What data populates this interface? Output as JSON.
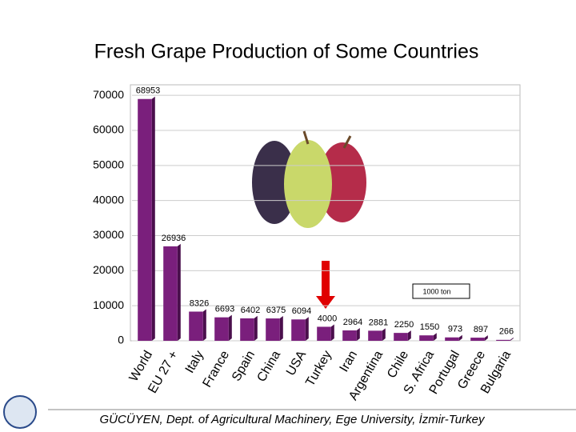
{
  "chart_data": {
    "type": "bar",
    "title": "Fresh Grape Production of Some Countries",
    "categories": [
      "World",
      "EU 27 +",
      "Italy",
      "France",
      "Spain",
      "China",
      "USA",
      "Turkey",
      "Iran",
      "Argentina",
      "Chile",
      "S. Africa",
      "Portugal",
      "Greece",
      "Bulgaria"
    ],
    "values": [
      68953,
      26936,
      8326,
      6693,
      6402,
      6375,
      6094,
      4000,
      2964,
      2881,
      2250,
      1550,
      973,
      897,
      266
    ],
    "color": "#7a1f7c",
    "ylim": [
      0,
      73000
    ],
    "yticks": [
      0,
      10000,
      20000,
      30000,
      40000,
      50000,
      60000,
      70000
    ],
    "grid": true,
    "annotation": "1000 ton"
  },
  "footer": "GÜCÜYEN, Dept. of Agricultural Machinery, Ege University, İzmir-Turkey"
}
